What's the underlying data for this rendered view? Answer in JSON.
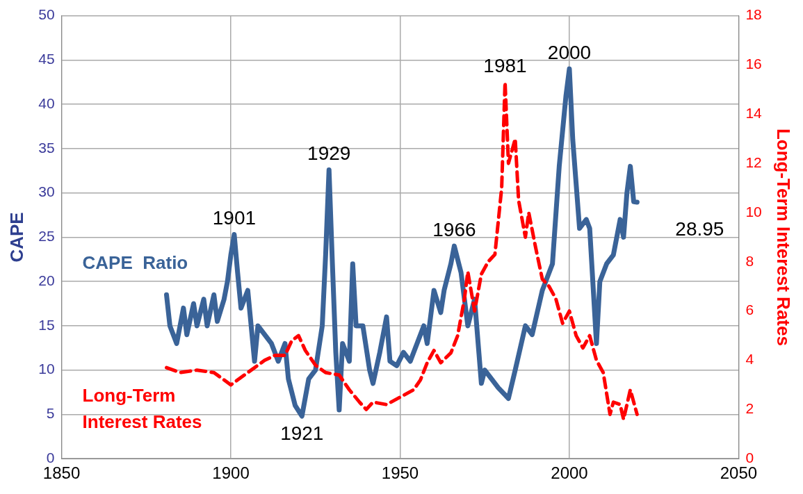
{
  "chart_data": {
    "type": "line",
    "ylabel": "CAPE",
    "y2label": "Long-Term Interest Rates",
    "xlim": [
      1850,
      2050
    ],
    "xticks": [
      1850,
      1900,
      1950,
      2000,
      2050
    ],
    "ylim": [
      0,
      50
    ],
    "yticks": [
      0,
      5,
      10,
      15,
      20,
      25,
      30,
      35,
      40,
      45,
      50
    ],
    "y2lim": [
      0,
      18
    ],
    "y2ticks": [
      0,
      2,
      4,
      6,
      8,
      10,
      12,
      14,
      16,
      18
    ],
    "grid": true,
    "legend": false,
    "marker": "none",
    "series": [
      {
        "name": "CAPE  Ratio",
        "color": "#3a6398",
        "line_style": "solid",
        "x": [
          1881,
          1882,
          1884,
          1886,
          1887,
          1889,
          1890,
          1892,
          1893,
          1895,
          1896,
          1898,
          1899,
          1900,
          1901,
          1902,
          1903,
          1905,
          1907,
          1908,
          1910,
          1912,
          1914,
          1916,
          1917,
          1919,
          1921,
          1923,
          1925,
          1927,
          1928,
          1929,
          1930,
          1931,
          1932,
          1933,
          1935,
          1936,
          1937,
          1939,
          1941,
          1942,
          1944,
          1946,
          1947,
          1949,
          1951,
          1953,
          1955,
          1957,
          1958,
          1960,
          1962,
          1963,
          1965,
          1966,
          1968,
          1970,
          1972,
          1974,
          1975,
          1977,
          1979,
          1982,
          1984,
          1987,
          1989,
          1992,
          1995,
          1997,
          1999,
          2000,
          2001,
          2003,
          2005,
          2006,
          2008,
          2009,
          2011,
          2013,
          2015,
          2016,
          2017,
          2018,
          2019,
          2020
        ],
        "values": [
          18.5,
          15,
          13,
          17,
          14,
          17.5,
          15,
          18,
          15,
          18.5,
          15.5,
          18,
          20,
          23,
          25.3,
          21,
          17,
          19,
          11,
          15,
          14,
          13,
          11,
          13,
          9,
          6,
          4.8,
          9,
          10,
          15,
          23,
          32.6,
          22,
          12,
          5.5,
          13,
          11,
          22,
          15,
          15,
          10,
          8.5,
          12,
          16,
          11,
          10.5,
          12,
          11,
          13,
          15,
          13,
          19,
          16.5,
          19,
          22,
          24,
          21,
          15,
          18,
          8.5,
          10,
          9,
          8,
          6.8,
          10,
          15,
          14,
          19,
          22,
          33,
          41,
          44,
          36,
          26,
          27,
          26,
          13,
          20,
          22,
          23,
          27,
          25,
          30,
          33,
          29,
          28.95
        ]
      },
      {
        "name": "Long-Term Interest Rates",
        "color": "#ff0000",
        "line_style": "dashed",
        "axis": "y2",
        "x": [
          1881,
          1885,
          1890,
          1895,
          1900,
          1905,
          1910,
          1913,
          1916,
          1918,
          1920,
          1922,
          1925,
          1928,
          1932,
          1935,
          1938,
          1940,
          1942,
          1946,
          1950,
          1954,
          1956,
          1958,
          1960,
          1962,
          1965,
          1967,
          1969,
          1970,
          1972,
          1974,
          1976,
          1978,
          1980,
          1981,
          1982,
          1984,
          1985,
          1987,
          1988,
          1990,
          1992,
          1994,
          1996,
          1998,
          2000,
          2002,
          2004,
          2006,
          2008,
          2010,
          2012,
          2013,
          2015,
          2016,
          2018,
          2020
        ],
        "values": [
          3.7,
          3.5,
          3.6,
          3.5,
          3.0,
          3.5,
          4.0,
          4.2,
          4.2,
          4.8,
          5.0,
          4.4,
          3.8,
          3.5,
          3.4,
          2.8,
          2.3,
          2.0,
          2.3,
          2.2,
          2.5,
          2.8,
          3.2,
          3.9,
          4.4,
          3.9,
          4.3,
          5.0,
          6.5,
          7.6,
          6.0,
          7.5,
          8.0,
          8.3,
          11.0,
          15.3,
          12,
          13,
          10.5,
          9,
          10,
          8.6,
          7.3,
          7.0,
          6.5,
          5.5,
          6.0,
          5.0,
          4.5,
          5.0,
          4.0,
          3.5,
          1.8,
          2.3,
          2.2,
          1.6,
          2.8,
          1.8
        ]
      }
    ],
    "annotations": [
      {
        "text": "1901",
        "x": 1901,
        "y": 25.3
      },
      {
        "text": "1921",
        "x": 1921,
        "y": 4.8
      },
      {
        "text": "1929",
        "x": 1929,
        "y": 32.6
      },
      {
        "text": "1966",
        "x": 1966,
        "y": 24
      },
      {
        "text": "1981",
        "x": 1981,
        "y": 42.5
      },
      {
        "text": "2000",
        "x": 2000,
        "y": 44
      },
      {
        "text": "28.95",
        "x": 2020,
        "y": 28.95
      }
    ]
  }
}
